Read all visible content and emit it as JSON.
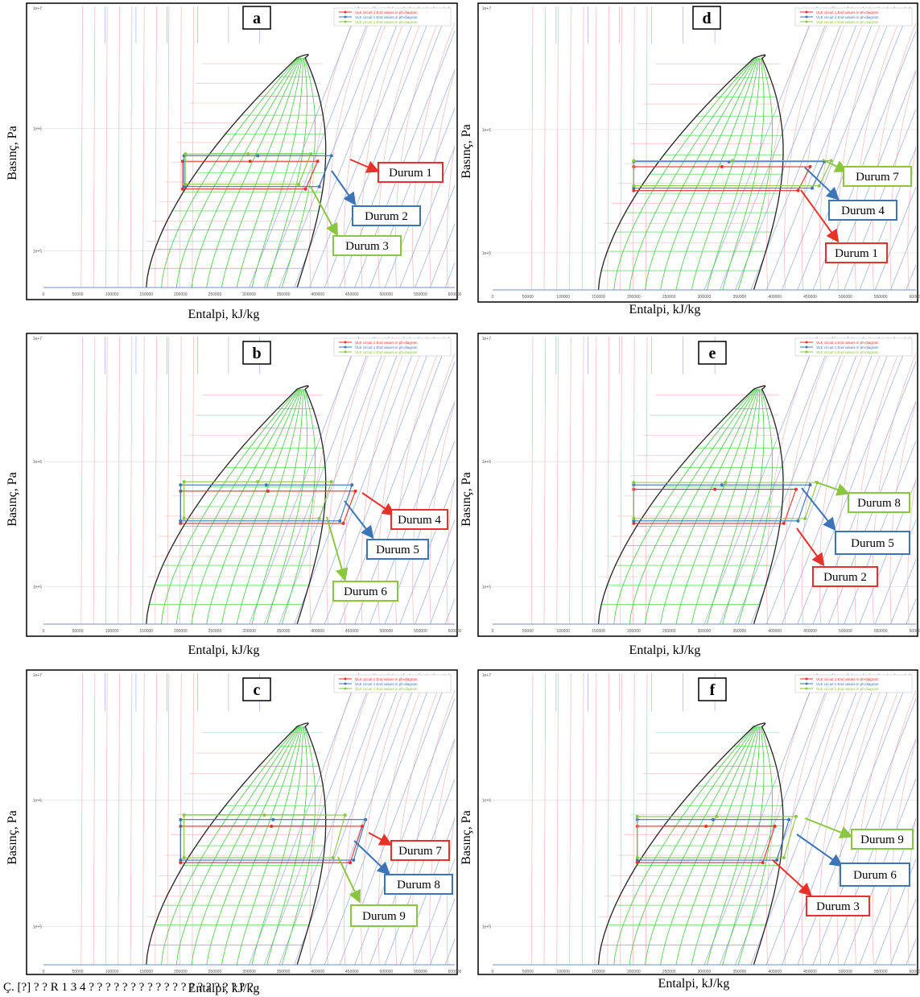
{
  "caption": "Ç. [?] ? ? R 1 3 4 ? ? ? ? ? ? ? ? ? ? ? ? ? ? ? ? ? ? ? ?",
  "colors": {
    "red": "#e8312a",
    "blue": "#3d74b8",
    "green": "#8ac640",
    "pink_line": "#f2b8b8",
    "blue_line": "#9aa8e0",
    "green_line": "#44cc44",
    "dome": "#222222"
  },
  "legend_entries": [
    "VLE circuit 1 End values in ph-diagram",
    "VLE circuit 1 End values in ph-diagram",
    "VLE circuit 1 End values in ph-diagram"
  ],
  "chart_data": [
    {
      "type": "line",
      "panel": "a",
      "xlabel": "Entalpi, kJ/kg",
      "ylabel": "Basınç, Pa",
      "xlim": [
        0,
        600000
      ],
      "ylim": [
        50000,
        10000000
      ],
      "y_scale": "log",
      "x_ticks": [
        "0",
        "50000",
        "100000",
        "150000",
        "200000",
        "250000",
        "300000",
        "350000",
        "400000",
        "450000",
        "500000",
        "550000",
        "600000"
      ],
      "y_ticks": [
        "1e+5",
        "1e+6",
        "1e+7"
      ],
      "annotations": [
        {
          "text": "Durum 1",
          "color": "red"
        },
        {
          "text": "Durum 2",
          "color": "blue"
        },
        {
          "text": "Durum 3",
          "color": "green"
        }
      ],
      "series": [
        {
          "color": "red",
          "x": [
            203000,
            400000,
            430000,
            203000
          ],
          "y": [
            540000,
            540000,
            540000,
            300000
          ]
        },
        {
          "color": "blue",
          "x": [
            205000,
            420000,
            440000,
            205000
          ],
          "y": [
            600000,
            600000,
            600000,
            320000
          ]
        },
        {
          "color": "green",
          "x": [
            207000,
            390000,
            410000,
            207000
          ],
          "y": [
            620000,
            620000,
            320000,
            320000
          ]
        }
      ]
    },
    {
      "type": "line",
      "panel": "d",
      "xlabel": "Entalpi, kJ/kg",
      "ylabel": "Basınç, Pa",
      "xlim": [
        0,
        600000
      ],
      "ylim": [
        50000,
        10000000
      ],
      "y_scale": "log",
      "x_ticks": [
        "0",
        "50000",
        "100000",
        "150000",
        "200000",
        "250000",
        "300000",
        "350000",
        "400000",
        "450000",
        "500000",
        "550000",
        "600000"
      ],
      "y_ticks": [
        "1e+5",
        "1e+6",
        "1e+7"
      ],
      "annotations": [
        {
          "text": "Durum 7",
          "color": "green"
        },
        {
          "text": "Durum 4",
          "color": "blue"
        },
        {
          "text": "Durum 1",
          "color": "red"
        }
      ],
      "series": [
        {
          "color": "red",
          "x": [
            200000,
            450000
          ],
          "y": [
            500000,
            500000
          ]
        },
        {
          "color": "blue",
          "x": [
            200000,
            470000
          ],
          "y": [
            550000,
            550000
          ]
        },
        {
          "color": "green",
          "x": [
            200000,
            480000
          ],
          "y": [
            560000,
            560000
          ]
        }
      ]
    },
    {
      "type": "line",
      "panel": "b",
      "xlabel": "Entalpi, kJ/kg",
      "ylabel": "Basınç, Pa",
      "xlim": [
        0,
        600000
      ],
      "ylim": [
        50000,
        10000000
      ],
      "y_scale": "log",
      "x_ticks": [
        "0",
        "50000",
        "100000",
        "150000",
        "200000",
        "250000",
        "300000",
        "350000",
        "400000",
        "450000",
        "500000",
        "550000",
        "600000"
      ],
      "y_ticks": [
        "1e+5",
        "1e+6",
        "1e+7"
      ],
      "annotations": [
        {
          "text": "Durum 4",
          "color": "red"
        },
        {
          "text": "Durum 5",
          "color": "blue"
        },
        {
          "text": "Durum 6",
          "color": "green"
        }
      ],
      "series": [
        {
          "color": "red",
          "x": [
            200000,
            455000
          ],
          "y": [
            580000,
            580000
          ]
        },
        {
          "color": "blue",
          "x": [
            200000,
            450000
          ],
          "y": [
            650000,
            650000
          ]
        },
        {
          "color": "green",
          "x": [
            205000,
            420000
          ],
          "y": [
            690000,
            690000
          ]
        }
      ]
    },
    {
      "type": "line",
      "panel": "e",
      "xlabel": "Entalpi, kJ/kg",
      "ylabel": "Basınç, Pa",
      "xlim": [
        0,
        600000
      ],
      "ylim": [
        50000,
        10000000
      ],
      "y_scale": "log",
      "x_ticks": [
        "0",
        "50000",
        "100000",
        "150000",
        "200000",
        "250000",
        "300000",
        "350000",
        "400000",
        "450000",
        "500000",
        "550000",
        "600000"
      ],
      "y_ticks": [
        "1e+5",
        "1e+6",
        "1e+7"
      ],
      "annotations": [
        {
          "text": "Durum 8",
          "color": "green"
        },
        {
          "text": "Durum 5",
          "color": "blue"
        },
        {
          "text": "Durum 2",
          "color": "red"
        }
      ],
      "series": [
        {
          "color": "red",
          "x": [
            200000,
            430000
          ],
          "y": [
            600000,
            600000
          ]
        },
        {
          "color": "blue",
          "x": [
            200000,
            450000
          ],
          "y": [
            650000,
            650000
          ]
        },
        {
          "color": "green",
          "x": [
            200000,
            460000
          ],
          "y": [
            680000,
            680000
          ]
        }
      ]
    },
    {
      "type": "line",
      "panel": "c",
      "xlabel": "Entalpi, kJ/kg",
      "ylabel": "Basınç, Pa",
      "xlim": [
        0,
        600000
      ],
      "ylim": [
        50000,
        10000000
      ],
      "y_scale": "log",
      "x_ticks": [
        "0",
        "50000",
        "100000",
        "150000",
        "200000",
        "250000",
        "300000",
        "350000",
        "400000",
        "450000",
        "500000",
        "550000",
        "600000"
      ],
      "y_ticks": [
        "1e+5",
        "1e+6",
        "1e+7"
      ],
      "annotations": [
        {
          "text": "Durum 7",
          "color": "red"
        },
        {
          "text": "Durum 8",
          "color": "blue"
        },
        {
          "text": "Durum 9",
          "color": "green"
        }
      ],
      "series": [
        {
          "color": "red",
          "x": [
            200000,
            465000
          ],
          "y": [
            620000,
            620000
          ]
        },
        {
          "color": "blue",
          "x": [
            200000,
            470000
          ],
          "y": [
            700000,
            700000
          ]
        },
        {
          "color": "green",
          "x": [
            205000,
            440000
          ],
          "y": [
            760000,
            760000
          ]
        }
      ]
    },
    {
      "type": "line",
      "panel": "f",
      "xlabel": "Entalpi, kJ/kg",
      "ylabel": "Basınç, Pa",
      "xlim": [
        0,
        600000
      ],
      "ylim": [
        50000,
        10000000
      ],
      "y_scale": "log",
      "x_ticks": [
        "0",
        "50000",
        "100000",
        "150000",
        "200000",
        "250000",
        "300000",
        "350000",
        "400000",
        "450000",
        "500000",
        "550000",
        "600000"
      ],
      "y_ticks": [
        "1e+5",
        "1e+6",
        "1e+7"
      ],
      "annotations": [
        {
          "text": "Durum 9",
          "color": "green"
        },
        {
          "text": "Durum 6",
          "color": "blue"
        },
        {
          "text": "Durum 3",
          "color": "red"
        }
      ],
      "series": [
        {
          "color": "red",
          "x": [
            205000,
            400000
          ],
          "y": [
            620000,
            620000
          ]
        },
        {
          "color": "blue",
          "x": [
            205000,
            420000
          ],
          "y": [
            700000,
            700000
          ]
        },
        {
          "color": "green",
          "x": [
            205000,
            430000
          ],
          "y": [
            740000,
            740000
          ]
        }
      ]
    }
  ]
}
